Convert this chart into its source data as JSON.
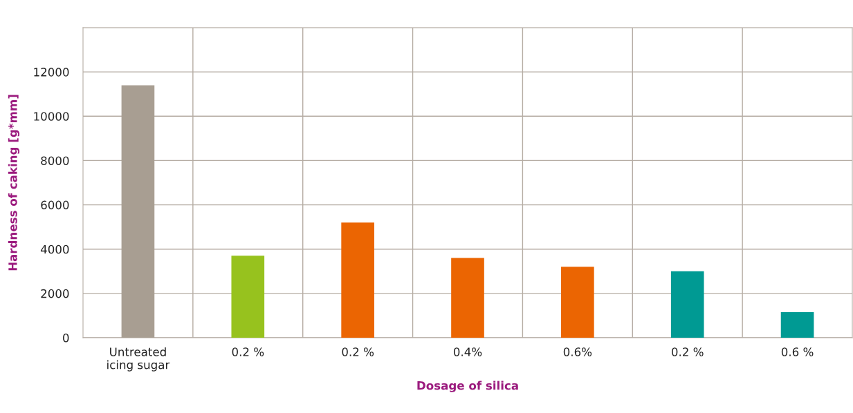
{
  "chart_data": {
    "type": "bar",
    "xlabel": "Dosage of silica",
    "ylabel": "Hardness of caking [g*mm]",
    "categories": [
      "Untreated\nicing sugar",
      "0.2 %",
      "0.2 %",
      "0.4%",
      "0.6%",
      "0.2 %",
      "0.6 %"
    ],
    "values": [
      11400,
      3700,
      5200,
      3600,
      3200,
      3000,
      1150
    ],
    "colors": [
      "#a89e92",
      "#97c21e",
      "#eb6502",
      "#eb6502",
      "#eb6502",
      "#009a93",
      "#009a93"
    ],
    "ylim": [
      0,
      14000
    ],
    "yticks": [
      0,
      2000,
      4000,
      6000,
      8000,
      10000,
      12000,
      {
        "value": 14000,
        "label": null
      }
    ],
    "grid": true
  }
}
